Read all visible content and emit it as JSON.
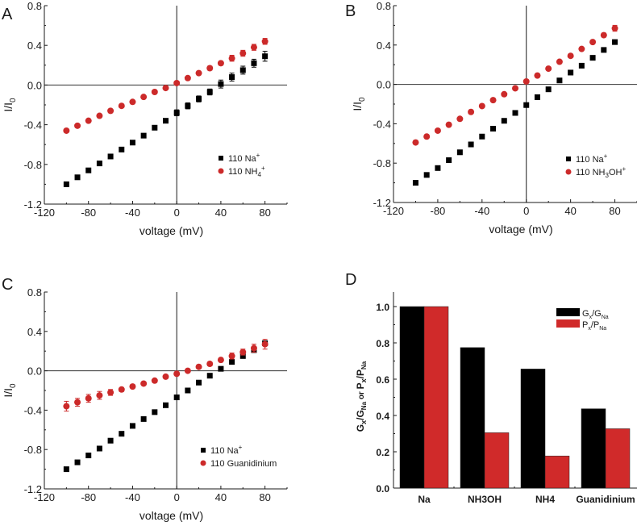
{
  "colors": {
    "na_marker": "#000000",
    "ion_marker": "#cc2a2a",
    "g_bar": "#000000",
    "p_bar": "#d02a2a",
    "axis": "#1a1a1a"
  },
  "chart_data": [
    {
      "panel": "A",
      "type": "scatter",
      "xlabel": "voltage (mV)",
      "ylabel": "I/I",
      "ylabel_sub": "0",
      "xlim": [
        -120,
        100
      ],
      "ylim": [
        -1.2,
        0.8
      ],
      "xticks": [
        -120,
        -80,
        -40,
        0,
        40,
        80
      ],
      "yticks": [
        -1.2,
        -0.8,
        -0.4,
        0.0,
        0.4,
        0.8
      ],
      "ytick_labels": [
        "-1.2",
        "-0.8",
        "-0.4",
        "0.0",
        "0.4",
        "0.8"
      ],
      "legend_position": "bottom-right",
      "x": [
        -100,
        -90,
        -80,
        -70,
        -60,
        -50,
        -40,
        -30,
        -20,
        -10,
        0,
        10,
        20,
        30,
        40,
        50,
        60,
        70,
        80
      ],
      "series": [
        {
          "name": "110 Na",
          "name_sup": "+",
          "name_sub": "",
          "name_tail": "",
          "marker": "square",
          "values": [
            -1.0,
            -0.93,
            -0.86,
            -0.79,
            -0.72,
            -0.65,
            -0.58,
            -0.51,
            -0.43,
            -0.36,
            -0.28,
            -0.21,
            -0.14,
            -0.07,
            0.01,
            0.08,
            0.15,
            0.22,
            0.29
          ],
          "errors": [
            0.01,
            0.01,
            0.01,
            0.01,
            0.01,
            0.01,
            0.01,
            0.01,
            0.01,
            0.02,
            0.03,
            0.03,
            0.03,
            0.03,
            0.04,
            0.04,
            0.04,
            0.04,
            0.05
          ]
        },
        {
          "name": "110 NH",
          "name_sub": "4",
          "name_sup": "+",
          "name_tail": "",
          "marker": "circle",
          "values": [
            -0.46,
            -0.41,
            -0.36,
            -0.31,
            -0.26,
            -0.21,
            -0.17,
            -0.12,
            -0.07,
            -0.03,
            0.02,
            0.07,
            0.12,
            0.17,
            0.22,
            0.27,
            0.32,
            0.38,
            0.44
          ],
          "errors": [
            0.01,
            0.01,
            0.01,
            0.01,
            0.01,
            0.01,
            0.01,
            0.01,
            0.01,
            0.01,
            0.01,
            0.01,
            0.01,
            0.02,
            0.02,
            0.03,
            0.03,
            0.03,
            0.03
          ]
        }
      ]
    },
    {
      "panel": "B",
      "type": "scatter",
      "xlabel": "voltage (mV)",
      "ylabel": "I/I",
      "ylabel_sub": "0",
      "xlim": [
        -120,
        100
      ],
      "ylim": [
        -1.2,
        0.8
      ],
      "xticks": [
        -120,
        -80,
        -40,
        0,
        40,
        80
      ],
      "yticks": [
        -1.2,
        -0.8,
        -0.4,
        0.0,
        0.4,
        0.8
      ],
      "ytick_labels": [
        "-1.2",
        "-0.8",
        "-0.4",
        "0.0",
        "0.4",
        "0.8"
      ],
      "legend_position": "bottom-right",
      "x": [
        -100,
        -90,
        -80,
        -70,
        -60,
        -50,
        -40,
        -30,
        -20,
        -10,
        0,
        10,
        20,
        30,
        40,
        50,
        60,
        70,
        80
      ],
      "series": [
        {
          "name": "110 Na",
          "name_sup": "+",
          "name_sub": "",
          "name_tail": "",
          "marker": "square",
          "values": [
            -1.0,
            -0.92,
            -0.85,
            -0.77,
            -0.69,
            -0.61,
            -0.53,
            -0.45,
            -0.37,
            -0.29,
            -0.21,
            -0.13,
            -0.05,
            0.04,
            0.12,
            0.19,
            0.27,
            0.35,
            0.43
          ],
          "errors": [
            0.01,
            0.01,
            0.01,
            0.01,
            0.01,
            0.01,
            0.01,
            0.01,
            0.01,
            0.01,
            0.01,
            0.01,
            0.01,
            0.01,
            0.01,
            0.01,
            0.01,
            0.01,
            0.01
          ]
        },
        {
          "name": "110 NH",
          "name_sub": "3",
          "name_sup": "+",
          "name_tail": "OH",
          "marker": "circle",
          "values": [
            -0.59,
            -0.53,
            -0.47,
            -0.41,
            -0.35,
            -0.28,
            -0.22,
            -0.16,
            -0.1,
            -0.04,
            0.03,
            0.09,
            0.16,
            0.23,
            0.29,
            0.36,
            0.43,
            0.5,
            0.57
          ],
          "errors": [
            0.02,
            0.01,
            0.01,
            0.01,
            0.01,
            0.01,
            0.01,
            0.01,
            0.01,
            0.01,
            0.01,
            0.01,
            0.01,
            0.01,
            0.01,
            0.01,
            0.01,
            0.02,
            0.03
          ]
        }
      ]
    },
    {
      "panel": "C",
      "type": "scatter",
      "xlabel": "voltage (mV)",
      "ylabel": "I/I",
      "ylabel_sub": "0",
      "xlim": [
        -120,
        100
      ],
      "ylim": [
        -1.2,
        0.8
      ],
      "xticks": [
        -120,
        -80,
        -40,
        0,
        40,
        80
      ],
      "yticks": [
        -1.2,
        -0.8,
        -0.4,
        0.0,
        0.4,
        0.8
      ],
      "ytick_labels": [
        "-1.2",
        "-0.8",
        "-0.4",
        "0.0",
        "0.4",
        "0.8"
      ],
      "legend_position": "bottom-right",
      "x": [
        -100,
        -90,
        -80,
        -70,
        -60,
        -50,
        -40,
        -30,
        -20,
        -10,
        0,
        10,
        20,
        30,
        40,
        50,
        60,
        70,
        80
      ],
      "series": [
        {
          "name": "110 Na",
          "name_sup": "+",
          "name_sub": "",
          "name_tail": "",
          "marker": "square",
          "values": [
            -1.0,
            -0.93,
            -0.86,
            -0.79,
            -0.71,
            -0.64,
            -0.56,
            -0.49,
            -0.42,
            -0.35,
            -0.27,
            -0.2,
            -0.12,
            -0.05,
            0.02,
            0.09,
            0.15,
            0.21,
            0.28
          ],
          "errors": [
            0.01,
            0.01,
            0.01,
            0.01,
            0.01,
            0.01,
            0.01,
            0.01,
            0.01,
            0.01,
            0.01,
            0.01,
            0.01,
            0.01,
            0.01,
            0.01,
            0.01,
            0.02,
            0.02
          ]
        },
        {
          "name": "110 Guanidinium",
          "name_sup": "",
          "name_sub": "",
          "name_tail": "",
          "marker": "circle",
          "values": [
            -0.36,
            -0.32,
            -0.28,
            -0.25,
            -0.22,
            -0.19,
            -0.16,
            -0.13,
            -0.1,
            -0.06,
            -0.03,
            0.0,
            0.04,
            0.07,
            0.11,
            0.15,
            0.19,
            0.23,
            0.27
          ],
          "errors": [
            0.05,
            0.04,
            0.04,
            0.04,
            0.03,
            0.02,
            0.02,
            0.01,
            0.01,
            0.01,
            0.01,
            0.01,
            0.01,
            0.02,
            0.02,
            0.03,
            0.03,
            0.04,
            0.05
          ]
        }
      ]
    },
    {
      "panel": "D",
      "type": "bar",
      "categories": [
        "Na",
        "NH3OH",
        "NH4",
        "Guanidinium"
      ],
      "ylabel": "G/G or P/P",
      "ylim": [
        0.0,
        1.08
      ],
      "yticks": [
        0.0,
        0.2,
        0.4,
        0.6,
        0.8,
        1.0
      ],
      "ytick_labels": [
        "0.0",
        "0.2",
        "0.4",
        "0.6",
        "0.8",
        "1.0"
      ],
      "legend_position": "top-right",
      "series": [
        {
          "name": "Gx/GNa",
          "label_main": "G",
          "label_sub1": "x",
          "label_mid": "/G",
          "label_sub2": "Na",
          "values": [
            1.0,
            0.774,
            0.656,
            0.437
          ]
        },
        {
          "name": "Px/PNa",
          "label_main": "P",
          "label_sub1": "x",
          "label_mid": "/P",
          "label_sub2": "Na",
          "values": [
            1.0,
            0.305,
            0.177,
            0.327
          ]
        }
      ]
    }
  ]
}
